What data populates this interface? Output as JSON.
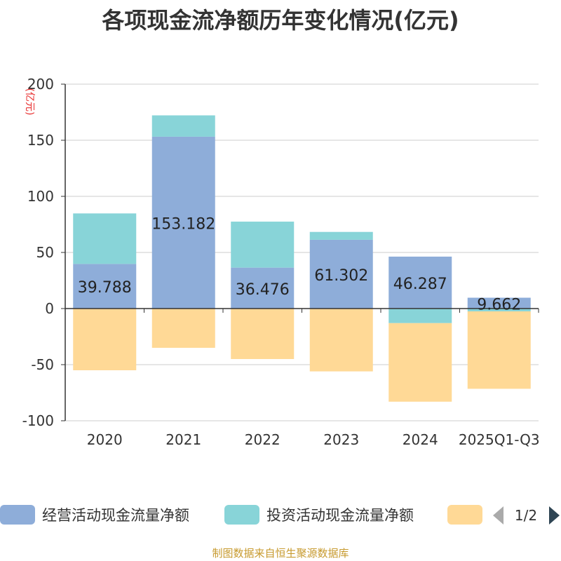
{
  "chart_data": {
    "type": "bar",
    "stacked": true,
    "title": "各项现金流净额历年变化情况(亿元)",
    "ylabel": "(亿元)",
    "xlabel": "",
    "ylim": [
      -100,
      200
    ],
    "yticks": [
      200,
      150,
      100,
      50,
      0,
      -50,
      -100
    ],
    "categories": [
      "2020",
      "2021",
      "2022",
      "2023",
      "2024",
      "2025Q1-Q3"
    ],
    "series": [
      {
        "name": "经营活动现金流量净额",
        "color": "#8eadd9",
        "values": [
          39.788,
          153.182,
          36.476,
          61.302,
          46.287,
          9.662
        ]
      },
      {
        "name": "投资活动现金流量净额",
        "color": "#88d4d8",
        "values": [
          45,
          19,
          41,
          7,
          -13,
          -2.5
        ]
      },
      {
        "name": "",
        "color": "#ffd996",
        "values": [
          -55,
          -35,
          -45,
          -56,
          -70,
          -69
        ]
      }
    ],
    "data_labels": [
      "39.788",
      "153.182",
      "36.476",
      "61.302",
      "46.287",
      "9.662"
    ],
    "legend": {
      "position": "bottom",
      "page": "1/2"
    }
  },
  "footer": {
    "text": "制图数据来自恒生聚源数据库",
    "color": "#c79a2e"
  }
}
